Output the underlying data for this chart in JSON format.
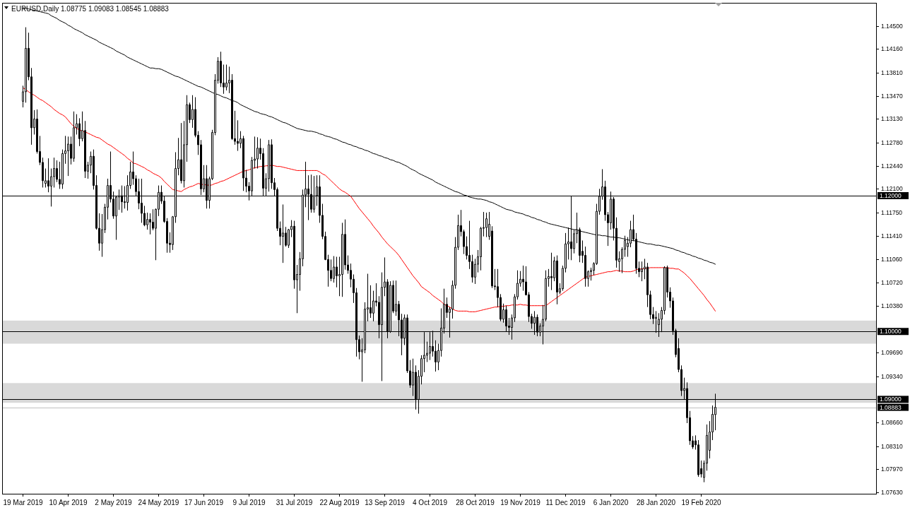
{
  "chart_data": {
    "type": "candlestick",
    "title": "EURUSD,Daily 1.08775 1.09083 1.08545 1.08883",
    "color": "#000000",
    "categories": [
      "19 Mar 2019",
      null,
      null,
      null,
      null,
      null,
      null,
      null,
      null,
      null,
      null,
      null,
      null,
      null,
      null,
      null,
      "10 Apr 2019",
      null,
      null,
      null,
      null,
      null,
      null,
      null,
      null,
      null,
      null,
      null,
      null,
      null,
      null,
      null,
      "2 May 2019",
      null,
      null,
      null,
      null,
      null,
      null,
      null,
      null,
      null,
      null,
      null,
      null,
      null,
      null,
      null,
      "24 May 2019",
      null,
      null,
      null,
      null,
      null,
      null,
      null,
      null,
      null,
      null,
      null,
      null,
      null,
      null,
      null,
      "17 Jun 2019",
      null,
      null,
      null,
      null,
      null,
      null,
      null,
      null,
      null,
      null,
      null,
      null,
      null,
      null,
      null,
      "9 Jul 2019",
      null,
      null,
      null,
      null,
      null,
      null,
      null,
      null,
      null,
      null,
      null,
      null,
      null,
      null,
      null,
      "31 Jul 2019",
      null,
      null,
      null,
      null,
      null,
      null,
      null,
      null,
      null,
      null,
      null,
      null,
      null,
      null,
      null,
      "22 Aug 2019",
      null,
      null,
      null,
      null,
      null,
      null,
      null,
      null,
      null,
      null,
      null,
      null,
      null,
      null,
      null,
      "13 Sep 2019",
      null,
      null,
      null,
      null,
      null,
      null,
      null,
      null,
      null,
      null,
      null,
      null,
      null,
      null,
      null,
      "4 Oct 2019",
      null,
      null,
      null,
      null,
      null,
      null,
      null,
      null,
      null,
      null,
      null,
      null,
      null,
      null,
      null,
      "28 Oct 2019",
      null,
      null,
      null,
      null,
      null,
      null,
      null,
      null,
      null,
      null,
      null,
      null,
      null,
      null,
      null,
      "19 Nov 2019",
      null,
      null,
      null,
      null,
      null,
      null,
      null,
      null,
      null,
      null,
      null,
      null,
      null,
      null,
      null,
      "11 Dec 2019",
      null,
      null,
      null,
      null,
      null,
      null,
      null,
      null,
      null,
      null,
      null,
      null,
      null,
      null,
      null,
      "6 Jan 2020",
      null,
      null,
      null,
      null,
      null,
      null,
      null,
      null,
      null,
      null,
      null,
      null,
      null,
      null,
      null,
      "28 Jan 2020",
      null,
      null,
      null,
      null,
      null,
      null,
      null,
      null,
      null,
      null,
      null,
      null,
      null,
      null,
      null,
      "19 Feb 2020",
      null,
      null,
      null,
      null,
      null
    ],
    "ohlc": [
      [
        1.1339,
        1.1362,
        1.133,
        1.1353
      ],
      [
        1.1353,
        1.1448,
        1.1337,
        1.1417
      ],
      [
        1.1417,
        1.144,
        1.137,
        1.1375
      ],
      [
        1.1375,
        1.1388,
        1.1275,
        1.13
      ],
      [
        1.13,
        1.1326,
        1.129,
        1.1313
      ],
      [
        1.1313,
        1.1327,
        1.1262,
        1.1265
      ],
      [
        1.1265,
        1.1288,
        1.1245,
        1.1249
      ],
      [
        1.1249,
        1.1256,
        1.1212,
        1.1222
      ],
      [
        1.1218,
        1.124,
        1.1212,
        1.1222
      ],
      [
        1.1222,
        1.1255,
        1.1205,
        1.1214
      ],
      [
        1.1214,
        1.124,
        1.1184,
        1.1228
      ],
      [
        1.1228,
        1.1256,
        1.1212,
        1.124
      ],
      [
        1.124,
        1.1252,
        1.122,
        1.1224
      ],
      [
        1.1224,
        1.125,
        1.121,
        1.1217
      ],
      [
        1.1217,
        1.1268,
        1.121,
        1.1262
      ],
      [
        1.1262,
        1.1288,
        1.1247,
        1.1266
      ],
      [
        1.1266,
        1.1287,
        1.1229,
        1.1276
      ],
      [
        1.1276,
        1.1287,
        1.1246,
        1.1255
      ],
      [
        1.1255,
        1.1324,
        1.125,
        1.13
      ],
      [
        1.13,
        1.132,
        1.129,
        1.1306
      ],
      [
        1.1306,
        1.1314,
        1.1273,
        1.1284
      ],
      [
        1.1284,
        1.1324,
        1.128,
        1.1296
      ],
      [
        1.1296,
        1.131,
        1.1226,
        1.1236
      ],
      [
        1.1236,
        1.125,
        1.1225,
        1.1245
      ],
      [
        1.1245,
        1.1265,
        1.1233,
        1.1258
      ],
      [
        1.1258,
        1.1268,
        1.1209,
        1.1215
      ],
      [
        1.1215,
        1.123,
        1.115,
        1.1152
      ],
      [
        1.1152,
        1.1174,
        1.1119,
        1.113
      ],
      [
        1.113,
        1.1173,
        1.111,
        1.115
      ],
      [
        1.115,
        1.1188,
        1.1145,
        1.1183
      ],
      [
        1.1183,
        1.1225,
        1.1165,
        1.1215
      ],
      [
        1.1215,
        1.1265,
        1.119,
        1.1195
      ],
      [
        1.1195,
        1.1206,
        1.1166,
        1.117
      ],
      [
        1.117,
        1.12,
        1.1135,
        1.1198
      ],
      [
        1.1198,
        1.1209,
        1.1179,
        1.12
      ],
      [
        1.12,
        1.1215,
        1.1175,
        1.1191
      ],
      [
        1.1191,
        1.1214,
        1.1181,
        1.119
      ],
      [
        1.119,
        1.123,
        1.1178,
        1.1215
      ],
      [
        1.1215,
        1.125,
        1.121,
        1.1235
      ],
      [
        1.1235,
        1.1265,
        1.1216,
        1.1225
      ],
      [
        1.1225,
        1.123,
        1.12,
        1.1206
      ],
      [
        1.1206,
        1.1225,
        1.118,
        1.1189
      ],
      [
        1.1189,
        1.1225,
        1.116,
        1.1174
      ],
      [
        1.1174,
        1.1185,
        1.1155,
        1.1157
      ],
      [
        1.1157,
        1.1175,
        1.115,
        1.1165
      ],
      [
        1.1165,
        1.1174,
        1.1143,
        1.1161
      ],
      [
        1.1161,
        1.118,
        1.1149,
        1.1152
      ],
      [
        1.1152,
        1.1181,
        1.1105,
        1.118
      ],
      [
        1.118,
        1.1215,
        1.117,
        1.1205
      ],
      [
        1.1205,
        1.1215,
        1.1188,
        1.1192
      ],
      [
        1.1192,
        1.12,
        1.116,
        1.1162
      ],
      [
        1.1162,
        1.1167,
        1.1116,
        1.113
      ],
      [
        1.113,
        1.1146,
        1.1116,
        1.1128
      ],
      [
        1.1128,
        1.117,
        1.112,
        1.1169
      ],
      [
        1.1169,
        1.1264,
        1.116,
        1.124
      ],
      [
        1.124,
        1.1285,
        1.123,
        1.1253
      ],
      [
        1.1253,
        1.1307,
        1.1218,
        1.1222
      ],
      [
        1.1222,
        1.131,
        1.1212,
        1.1275
      ],
      [
        1.1275,
        1.1348,
        1.125,
        1.1334
      ],
      [
        1.1334,
        1.1337,
        1.1307,
        1.1312
      ],
      [
        1.1312,
        1.1348,
        1.13,
        1.1327
      ],
      [
        1.1327,
        1.1345,
        1.1286,
        1.1289
      ],
      [
        1.1289,
        1.1295,
        1.126,
        1.1275
      ],
      [
        1.1275,
        1.1282,
        1.1201,
        1.121
      ],
      [
        1.121,
        1.1245,
        1.1205,
        1.1225
      ],
      [
        1.1225,
        1.1245,
        1.1181,
        1.1193
      ],
      [
        1.1193,
        1.1228,
        1.1181,
        1.1225
      ],
      [
        1.1225,
        1.1297,
        1.1223,
        1.1293
      ],
      [
        1.1293,
        1.1379,
        1.1289,
        1.137
      ],
      [
        1.137,
        1.1404,
        1.1365,
        1.1398
      ],
      [
        1.1398,
        1.1412,
        1.136,
        1.1366
      ],
      [
        1.1366,
        1.1393,
        1.135,
        1.136
      ],
      [
        1.136,
        1.1393,
        1.1355,
        1.1366
      ],
      [
        1.1366,
        1.139,
        1.1351,
        1.137
      ],
      [
        1.137,
        1.1379,
        1.1282,
        1.1284
      ],
      [
        1.1284,
        1.1325,
        1.1275,
        1.128
      ],
      [
        1.128,
        1.1311,
        1.1266,
        1.1277
      ],
      [
        1.1277,
        1.1295,
        1.127,
        1.1284
      ],
      [
        1.1284,
        1.1288,
        1.1207,
        1.1226
      ],
      [
        1.1226,
        1.1238,
        1.1205,
        1.1214
      ],
      [
        1.1214,
        1.122,
        1.1193,
        1.1207
      ],
      [
        1.1207,
        1.1257,
        1.12,
        1.1252
      ],
      [
        1.1252,
        1.1287,
        1.124,
        1.1254
      ],
      [
        1.1254,
        1.1286,
        1.124,
        1.127
      ],
      [
        1.127,
        1.1284,
        1.1253,
        1.1262
      ],
      [
        1.1262,
        1.127,
        1.12,
        1.1211
      ],
      [
        1.1211,
        1.1233,
        1.12,
        1.1225
      ],
      [
        1.1225,
        1.1282,
        1.1206,
        1.1275
      ],
      [
        1.1275,
        1.1283,
        1.121,
        1.1219
      ],
      [
        1.1219,
        1.1226,
        1.12,
        1.1209
      ],
      [
        1.1209,
        1.1212,
        1.1148,
        1.1152
      ],
      [
        1.1152,
        1.1162,
        1.1127,
        1.114
      ],
      [
        1.114,
        1.1187,
        1.1101,
        1.1145
      ],
      [
        1.1145,
        1.1154,
        1.1125,
        1.1127
      ],
      [
        1.1127,
        1.1151,
        1.1123,
        1.115
      ],
      [
        1.115,
        1.1164,
        1.1139,
        1.1155
      ],
      [
        1.1155,
        1.1163,
        1.1063,
        1.1076
      ],
      [
        1.1076,
        1.1098,
        1.1027,
        1.1084
      ],
      [
        1.1084,
        1.1117,
        1.106,
        1.1107
      ],
      [
        1.1107,
        1.1209,
        1.1096,
        1.1201
      ],
      [
        1.1201,
        1.125,
        1.1183,
        1.121
      ],
      [
        1.121,
        1.123,
        1.1164,
        1.1202
      ],
      [
        1.1202,
        1.1231,
        1.1175,
        1.118
      ],
      [
        1.118,
        1.1229,
        1.1175,
        1.12
      ],
      [
        1.12,
        1.123,
        1.1185,
        1.1213
      ],
      [
        1.1213,
        1.123,
        1.116,
        1.1171
      ],
      [
        1.1171,
        1.1188,
        1.1136,
        1.114
      ],
      [
        1.114,
        1.1147,
        1.1105,
        1.1106
      ],
      [
        1.1106,
        1.1113,
        1.1066,
        1.109
      ],
      [
        1.109,
        1.1106,
        1.1074,
        1.1078
      ],
      [
        1.1078,
        1.1111,
        1.1072,
        1.1095
      ],
      [
        1.1095,
        1.111,
        1.1065,
        1.1082
      ],
      [
        1.1082,
        1.111,
        1.1052,
        1.1084
      ],
      [
        1.1084,
        1.116,
        1.1051,
        1.1143
      ],
      [
        1.1143,
        1.1165,
        1.1091,
        1.1098
      ],
      [
        1.1098,
        1.1112,
        1.1085,
        1.109
      ],
      [
        1.109,
        1.11,
        1.1065,
        1.1077
      ],
      [
        1.1077,
        1.1084,
        1.1042,
        1.1057
      ],
      [
        1.1057,
        1.1064,
        1.0963,
        1.0988
      ],
      [
        1.0988,
        1.0994,
        1.0959,
        1.097
      ],
      [
        1.097,
        1.099,
        1.0926,
        1.0973
      ],
      [
        1.0973,
        1.1043,
        1.0968,
        1.1033
      ],
      [
        1.1033,
        1.1085,
        1.1015,
        1.1035
      ],
      [
        1.1035,
        1.1068,
        1.102,
        1.1027
      ],
      [
        1.1027,
        1.106,
        1.1015,
        1.1045
      ],
      [
        1.1045,
        1.1071,
        1.1037,
        1.1043
      ],
      [
        1.1043,
        1.1052,
        1.099,
        1.101
      ],
      [
        1.101,
        1.1087,
        1.0927,
        1.1065
      ],
      [
        1.1065,
        1.1109,
        1.1052,
        1.1073
      ],
      [
        1.1073,
        1.1077,
        1.099,
        1.1
      ],
      [
        1.1,
        1.1074,
        1.0998,
        1.1068
      ],
      [
        1.1068,
        1.1075,
        1.1027,
        1.103
      ],
      [
        1.103,
        1.1075,
        1.1023,
        1.104
      ],
      [
        1.104,
        1.1045,
        1.0993,
        1.1017
      ],
      [
        1.1017,
        1.1026,
        1.0965,
        1.099
      ],
      [
        1.099,
        1.1025,
        1.098,
        1.102
      ],
      [
        1.102,
        1.1025,
        1.0939,
        1.0942
      ],
      [
        1.0942,
        1.0958,
        1.0917,
        1.0921
      ],
      [
        1.0921,
        1.096,
        1.0905,
        1.094
      ],
      [
        1.094,
        1.095,
        1.0885,
        1.09
      ],
      [
        1.09,
        1.0943,
        1.0879,
        1.0934
      ],
      [
        1.0934,
        1.0965,
        1.0922,
        1.096
      ],
      [
        1.096,
        1.0999,
        1.094,
        1.0965
      ],
      [
        1.0965,
        1.0985,
        1.0955,
        1.0968
      ],
      [
        1.0968,
        1.0999,
        1.0958,
        1.0978
      ],
      [
        1.0978,
        1.1001,
        1.0963,
        1.0971
      ],
      [
        1.0971,
        1.0987,
        1.0941,
        1.0955
      ],
      [
        1.0955,
        1.0982,
        1.0943,
        1.0972
      ],
      [
        1.0972,
        1.1034,
        1.0963,
        1.1005
      ],
      [
        1.1005,
        1.1063,
        1.0997,
        1.104
      ],
      [
        1.104,
        1.105,
        1.102,
        1.1028
      ],
      [
        1.1028,
        1.1036,
        1.0991,
        1.1033
      ],
      [
        1.1033,
        1.1075,
        1.1019,
        1.1068
      ],
      [
        1.1068,
        1.1139,
        1.1063,
        1.1124
      ],
      [
        1.1124,
        1.1172,
        1.112,
        1.1156
      ],
      [
        1.1156,
        1.1179,
        1.114,
        1.1147
      ],
      [
        1.1147,
        1.115,
        1.1114,
        1.1125
      ],
      [
        1.1125,
        1.114,
        1.1106,
        1.1112
      ],
      [
        1.1112,
        1.1163,
        1.1092,
        1.1103
      ],
      [
        1.1103,
        1.1113,
        1.1072,
        1.108
      ],
      [
        1.108,
        1.1107,
        1.107,
        1.1099
      ],
      [
        1.1099,
        1.112,
        1.1087,
        1.111
      ],
      [
        1.111,
        1.1154,
        1.109,
        1.1152
      ],
      [
        1.1152,
        1.1176,
        1.114,
        1.1153
      ],
      [
        1.1153,
        1.1175,
        1.1139,
        1.1166
      ],
      [
        1.114,
        1.1176,
        1.1135,
        1.1158
      ],
      [
        1.1148,
        1.1155,
        1.1064,
        1.1067
      ],
      [
        1.1067,
        1.1092,
        1.1061,
        1.1066
      ],
      [
        1.1066,
        1.1092,
        1.1036,
        1.105
      ],
      [
        1.105,
        1.1055,
        1.1015,
        1.1018
      ],
      [
        1.1018,
        1.1041,
        1.1013,
        1.1032
      ],
      [
        1.1032,
        1.1038,
        1.1,
        1.1008
      ],
      [
        1.1008,
        1.102,
        1.0995,
        1.1006
      ],
      [
        1.1006,
        1.1025,
        1.0988,
        1.102
      ],
      [
        1.102,
        1.1055,
        1.1014,
        1.1051
      ],
      [
        1.1051,
        1.109,
        1.1047,
        1.1071
      ],
      [
        1.1071,
        1.1089,
        1.1066,
        1.1077
      ],
      [
        1.1077,
        1.1097,
        1.106,
        1.1073
      ],
      [
        1.1073,
        1.1096,
        1.1053,
        1.1054
      ],
      [
        1.1054,
        1.1058,
        1.1014,
        1.1022
      ],
      [
        1.1022,
        1.1026,
        1.1004,
        1.1012
      ],
      [
        1.1012,
        1.103,
        1.0995,
        1.1021
      ],
      [
        1.1021,
        1.1025,
        1.0993,
        1.0999
      ],
      [
        1.0999,
        1.1012,
        1.0993,
        1.1008
      ],
      [
        1.1008,
        1.1039,
        1.0981,
        1.1018
      ],
      [
        1.1018,
        1.109,
        1.1015,
        1.1078
      ],
      [
        1.1078,
        1.1092,
        1.1066,
        1.1081
      ],
      [
        1.1081,
        1.1116,
        1.1061,
        1.1079
      ],
      [
        1.1079,
        1.111,
        1.1074,
        1.1104
      ],
      [
        1.1104,
        1.1112,
        1.104,
        1.1058
      ],
      [
        1.1058,
        1.1071,
        1.1055,
        1.1063
      ],
      [
        1.1063,
        1.1097,
        1.106,
        1.1093
      ],
      [
        1.1093,
        1.1145,
        1.1087,
        1.1129
      ],
      [
        1.1129,
        1.1153,
        1.1106,
        1.1132
      ],
      [
        1.1132,
        1.12,
        1.1105,
        1.1122
      ],
      [
        1.1122,
        1.115,
        1.1115,
        1.1144
      ],
      [
        1.1144,
        1.1175,
        1.113,
        1.115
      ],
      [
        1.115,
        1.1153,
        1.1102,
        1.1112
      ],
      [
        1.1118,
        1.1134,
        1.1101,
        1.1112
      ],
      [
        1.1112,
        1.1125,
        1.1066,
        1.1078
      ],
      [
        1.1078,
        1.109,
        1.1066,
        1.1088
      ],
      [
        1.1088,
        1.1094,
        1.1075,
        1.109
      ],
      [
        1.109,
        1.1102,
        1.1083,
        1.11
      ],
      [
        1.11,
        1.1188,
        1.1098,
        1.1177
      ],
      [
        1.1177,
        1.121,
        1.1172,
        1.1199
      ],
      [
        1.1199,
        1.1239,
        1.1194,
        1.1213
      ],
      [
        1.1213,
        1.1222,
        1.1163,
        1.1172
      ],
      [
        1.1172,
        1.1176,
        1.1126,
        1.116
      ],
      [
        1.116,
        1.1206,
        1.115,
        1.1195
      ],
      [
        1.1195,
        1.1198,
        1.1134,
        1.1152
      ],
      [
        1.1152,
        1.1168,
        1.1094,
        1.1105
      ],
      [
        1.1103,
        1.1118,
        1.1088,
        1.1107
      ],
      [
        1.1107,
        1.1124,
        1.1086,
        1.1121
      ],
      [
        1.1121,
        1.1141,
        1.111,
        1.1134
      ],
      [
        1.1125,
        1.1139,
        1.111,
        1.113
      ],
      [
        1.113,
        1.1163,
        1.1124,
        1.115
      ],
      [
        1.115,
        1.1172,
        1.1133,
        1.1136
      ],
      [
        1.1136,
        1.1145,
        1.1085,
        1.1093
      ],
      [
        1.1093,
        1.1103,
        1.108,
        1.1088
      ],
      [
        1.1088,
        1.1103,
        1.1074,
        1.1092
      ],
      [
        1.1092,
        1.1107,
        1.1077,
        1.1095
      ],
      [
        1.1095,
        1.1101,
        1.1036,
        1.1054
      ],
      [
        1.1054,
        1.106,
        1.1018,
        1.1025
      ],
      [
        1.1025,
        1.1036,
        1.1011,
        1.1019
      ],
      [
        1.1019,
        1.103,
        1.0998,
        1.1021
      ],
      [
        1.101,
        1.1027,
        1.0992,
        1.1018
      ],
      [
        1.1018,
        1.1036,
        1.0999,
        1.1031
      ],
      [
        1.1031,
        1.1096,
        1.1025,
        1.1094
      ],
      [
        1.1094,
        1.1097,
        1.105,
        1.1058
      ],
      [
        1.1058,
        1.1065,
        1.1035,
        1.1045
      ],
      [
        1.1045,
        1.105,
        1.0995,
        1.1001
      ],
      [
        1.1001,
        1.1004,
        1.0962,
        1.0966
      ],
      [
        1.0975,
        1.099,
        1.094,
        1.0944
      ],
      [
        1.0944,
        1.095,
        1.0905,
        1.0913
      ],
      [
        1.0913,
        1.0932,
        1.09,
        1.0916
      ],
      [
        1.0916,
        1.0925,
        1.0865,
        1.0873
      ],
      [
        1.0873,
        1.0883,
        1.0833,
        1.0839
      ],
      [
        1.0839,
        1.0846,
        1.0827,
        1.083
      ],
      [
        1.0839,
        1.0847,
        1.0826,
        1.0833
      ],
      [
        1.0833,
        1.084,
        1.0786,
        1.0789
      ],
      [
        1.0798,
        1.081,
        1.0785,
        1.079
      ],
      [
        1.0785,
        1.081,
        1.0778,
        1.0806
      ],
      [
        1.0806,
        1.0863,
        1.0795,
        1.0847
      ],
      [
        1.0825,
        1.0868,
        1.0813,
        1.0852
      ],
      [
        1.0852,
        1.0891,
        1.084,
        1.0878
      ],
      [
        1.08775,
        1.09083,
        1.08545,
        1.08883
      ]
    ],
    "series": [
      {
        "type": "line",
        "color": "#000000",
        "values": [
          1.1477,
          1.1476,
          1.1475,
          1.1474,
          1.1473,
          1.1472,
          1.1471,
          1.147,
          1.1469,
          1.1468,
          1.1465,
          1.1463,
          1.1461,
          1.1458,
          1.1456,
          1.1454,
          1.1451,
          1.1449,
          1.1446,
          1.1444,
          1.1442,
          1.144,
          1.1437,
          1.1435,
          1.1433,
          1.1431,
          1.1429,
          1.1426,
          1.1424,
          1.1422,
          1.142,
          1.1418,
          1.1416,
          1.1413,
          1.1411,
          1.1409,
          1.1407,
          1.1404,
          1.1402,
          1.14,
          1.1398,
          1.1396,
          1.1394,
          1.1392,
          1.139,
          1.1388,
          1.1388,
          1.1387,
          1.1387,
          1.1386,
          1.1384,
          1.1382,
          1.138,
          1.1378,
          1.1376,
          1.1375,
          1.1373,
          1.1371,
          1.1369,
          1.1367,
          1.1365,
          1.1363,
          1.1361,
          1.136,
          1.1358,
          1.1356,
          1.1354,
          1.1352,
          1.135,
          1.1349,
          1.1347,
          1.1345,
          1.1344,
          1.1342,
          1.134,
          1.1339,
          1.1337,
          1.1334,
          1.1332,
          1.133,
          1.1328,
          1.1326,
          1.1324,
          1.1323,
          1.1321,
          1.132,
          1.1319,
          1.1317,
          1.1316,
          1.1314,
          1.1312,
          1.131,
          1.1308,
          1.1307,
          1.1305,
          1.1303,
          1.1301,
          1.1299,
          1.1298,
          1.1297,
          1.1296,
          1.1295,
          1.1295,
          1.1294,
          1.1293,
          1.1291,
          1.129,
          1.1288,
          1.1287,
          1.1286,
          1.1284,
          1.1283,
          1.1281,
          1.1279,
          1.1278,
          1.1276,
          1.1275,
          1.1273,
          1.1272,
          1.127,
          1.1269,
          1.1267,
          1.1266,
          1.1264,
          1.1262,
          1.1261,
          1.1259,
          1.1258,
          1.1256,
          1.1255,
          1.1253,
          1.1252,
          1.125,
          1.1249,
          1.1247,
          1.1245,
          1.1243,
          1.124,
          1.1238,
          1.1236,
          1.1233,
          1.1231,
          1.1229,
          1.1227,
          1.1225,
          1.1223,
          1.122,
          1.1218,
          1.1216,
          1.1214,
          1.1212,
          1.121,
          1.1208,
          1.1206,
          1.1205,
          1.1203,
          1.1201,
          1.12,
          1.1198,
          1.1197,
          1.1196,
          1.1195,
          1.1195,
          1.1194,
          1.1193,
          1.1191,
          1.119,
          1.1188,
          1.1186,
          1.1184,
          1.1182,
          1.118,
          1.1179,
          1.1178,
          1.1176,
          1.1175,
          1.1174,
          1.1173,
          1.1171,
          1.117,
          1.1168,
          1.1167,
          1.1165,
          1.1164,
          1.1162,
          1.1161,
          1.1159,
          1.1158,
          1.1157,
          1.1156,
          1.1155,
          1.1154,
          1.1153,
          1.1152,
          1.1151,
          1.115,
          1.115,
          1.1148,
          1.1147,
          1.1146,
          1.1145,
          1.1144,
          1.1143,
          1.1142,
          1.1142,
          1.1141,
          1.1141,
          1.114,
          1.1139,
          1.1139,
          1.1138,
          1.1138,
          1.1137,
          1.1136,
          1.1135,
          1.1134,
          1.1134,
          1.1133,
          1.1132,
          1.1131,
          1.113,
          1.1129,
          1.1129,
          1.1128,
          1.1127,
          1.1127,
          1.1126,
          1.1125,
          1.1124,
          1.1123,
          1.1122,
          1.112,
          1.1119,
          1.1117,
          1.1116,
          1.1114,
          1.1113,
          1.1111,
          1.111,
          1.1108,
          1.1107,
          1.1105,
          1.1104,
          1.1102,
          1.1101,
          1.1099
        ]
      },
      {
        "type": "line",
        "color": "#ff0000",
        "values": [
          1.1359,
          1.1356,
          1.1353,
          1.135,
          1.1348,
          1.1345,
          1.1342,
          1.134,
          1.1337,
          1.1334,
          1.1331,
          1.1327,
          1.1324,
          1.1321,
          1.1319,
          1.1316,
          1.1311,
          1.1306,
          1.1302,
          1.1299,
          1.1297,
          1.1295,
          1.1294,
          1.1292,
          1.129,
          1.1288,
          1.1286,
          1.1285,
          1.1282,
          1.1279,
          1.1276,
          1.1274,
          1.1271,
          1.1268,
          1.1265,
          1.1262,
          1.1259,
          1.1255,
          1.1252,
          1.1248,
          1.1247,
          1.1245,
          1.1243,
          1.1241,
          1.1238,
          1.1236,
          1.1233,
          1.1231,
          1.1229,
          1.1226,
          1.1221,
          1.1217,
          1.1213,
          1.1209,
          1.1208,
          1.1207,
          1.1206,
          1.1209,
          1.1211,
          1.1213,
          1.1214,
          1.1216,
          1.1218,
          1.1217,
          1.1216,
          1.1216,
          1.1215,
          1.1216,
          1.1218,
          1.1219,
          1.1221,
          1.1222,
          1.1224,
          1.1226,
          1.1228,
          1.123,
          1.1232,
          1.1234,
          1.1236,
          1.1237,
          1.1238,
          1.124,
          1.1241,
          1.1242,
          1.1243,
          1.1243,
          1.1244,
          1.1244,
          1.1245,
          1.1244,
          1.1243,
          1.1243,
          1.1242,
          1.1241,
          1.124,
          1.1239,
          1.1238,
          1.1237,
          1.1237,
          1.1237,
          1.1237,
          1.1237,
          1.1237,
          1.1237,
          1.1237,
          1.1235,
          1.1232,
          1.123,
          1.1226,
          1.1222,
          1.1218,
          1.1214,
          1.121,
          1.1207,
          1.1205,
          1.1202,
          1.1199,
          1.1193,
          1.1187,
          1.1181,
          1.1176,
          1.1171,
          1.1166,
          1.1161,
          1.1155,
          1.115,
          1.1145,
          1.1139,
          1.1134,
          1.1129,
          1.1125,
          1.1121,
          1.1117,
          1.1112,
          1.1106,
          1.11,
          1.1094,
          1.1088,
          1.1082,
          1.1077,
          1.1072,
          1.1066,
          1.1063,
          1.106,
          1.1057,
          1.1053,
          1.105,
          1.1047,
          1.1044,
          1.104,
          1.1038,
          1.1036,
          1.1033,
          1.1031,
          1.103,
          1.103,
          1.103,
          1.103,
          1.1029,
          1.1029,
          1.1029,
          1.103,
          1.1031,
          1.1032,
          1.1033,
          1.1034,
          1.1035,
          1.1036,
          1.1036,
          1.1037,
          1.1037,
          1.1038,
          1.1038,
          1.1039,
          1.1039,
          1.1039,
          1.104,
          1.1039,
          1.1039,
          1.1038,
          1.1038,
          1.1038,
          1.1038,
          1.1038,
          1.1038,
          1.1038,
          1.1041,
          1.1044,
          1.1047,
          1.105,
          1.1053,
          1.1056,
          1.1059,
          1.1062,
          1.1065,
          1.1068,
          1.1071,
          1.1074,
          1.1077,
          1.108,
          1.1081,
          1.1082,
          1.1083,
          1.1084,
          1.1085,
          1.1086,
          1.1087,
          1.1088,
          1.1088,
          1.1089,
          1.109,
          1.1089,
          1.1089,
          1.1088,
          1.1088,
          1.1088,
          1.1089,
          1.1091,
          1.1092,
          1.1092,
          1.1093,
          1.1093,
          1.1094,
          1.1094,
          1.1094,
          1.1094,
          1.1094,
          1.1094,
          1.1094,
          1.1093,
          1.1093,
          1.1092,
          1.1092,
          1.1089,
          1.1086,
          1.1082,
          1.1078,
          1.1073,
          1.1068,
          1.1063,
          1.1058,
          1.1053,
          1.1047,
          1.1042,
          1.1036,
          1.103
        ]
      }
    ],
    "ylim": [
      1.0761,
      1.1484
    ],
    "yticks": [
      {
        "value": 1.145,
        "label": "1.14500"
      },
      {
        "value": 1.1416,
        "label": "1.14160"
      },
      {
        "value": 1.1381,
        "label": "1.13810"
      },
      {
        "value": 1.1347,
        "label": "1.13470"
      },
      {
        "value": 1.1313,
        "label": "1.13130"
      },
      {
        "value": 1.1278,
        "label": "1.12780"
      },
      {
        "value": 1.1244,
        "label": "1.12440"
      },
      {
        "value": 1.121,
        "label": "1.12100"
      },
      {
        "value": 1.1175,
        "label": "1.11750"
      },
      {
        "value": 1.1141,
        "label": "1.11410"
      },
      {
        "value": 1.1106,
        "label": "1.11060"
      },
      {
        "value": 1.1072,
        "label": "1.10720"
      },
      {
        "value": 1.1038,
        "label": "1.10380"
      },
      {
        "value": 1.0969,
        "label": "1.09690"
      },
      {
        "value": 1.0934,
        "label": "1.09340"
      },
      {
        "value": 1.0866,
        "label": "1.08660"
      },
      {
        "value": 1.0831,
        "label": "1.08310"
      },
      {
        "value": 1.0797,
        "label": "1.07970"
      },
      {
        "value": 1.0763,
        "label": "1.07630"
      }
    ],
    "ref_lines": [
      {
        "axis": "y",
        "value": 1.12,
        "label": "1.12000",
        "color": "#000000"
      },
      {
        "axis": "y",
        "value": 1.1,
        "label": "1.10000",
        "color": "#000000"
      },
      {
        "axis": "y",
        "value": 1.09,
        "label": "1.09000",
        "color": "#000000"
      },
      {
        "axis": "y",
        "value": 1.08883,
        "label": "1.08883",
        "color": "#c0c0c0"
      }
    ],
    "bands": [
      {
        "axis": "y",
        "from": 1.0982,
        "to": 1.1016,
        "color": "#d9d9d9"
      },
      {
        "axis": "y",
        "from": 1.0895,
        "to": 1.0924,
        "color": "#d9d9d9"
      }
    ]
  }
}
